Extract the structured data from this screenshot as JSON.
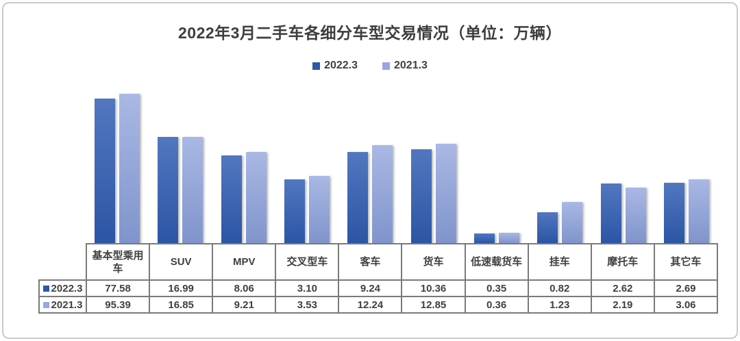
{
  "chart_data": {
    "type": "bar",
    "title": "2022年3月二手车各细分车型交易情况（单位：万辆）",
    "categories": [
      "基本型乘用车",
      "SUV",
      "MPV",
      "交叉型车",
      "客车",
      "货车",
      "低速载货车",
      "挂车",
      "摩托车",
      "其它车"
    ],
    "series": [
      {
        "name": "2022.3",
        "swatch_color": "#2e57a7",
        "fill_top": "#5277c0",
        "fill_bottom": "#2b55a5",
        "values": [
          77.58,
          16.99,
          8.06,
          3.1,
          9.24,
          10.36,
          0.35,
          0.82,
          2.62,
          2.69
        ]
      },
      {
        "name": "2021.3",
        "swatch_color": "#97a8db",
        "fill_top": "#a9b8e4",
        "fill_bottom": "#8094cc",
        "values": [
          95.39,
          16.85,
          9.21,
          3.53,
          12.24,
          12.85,
          0.36,
          1.23,
          2.19,
          3.06
        ]
      }
    ],
    "ylabel": "",
    "xlabel": "",
    "y_scale": "log",
    "grid": "off",
    "legend_position": "top-center",
    "data_table_shown": true,
    "value_decimals": 2
  }
}
